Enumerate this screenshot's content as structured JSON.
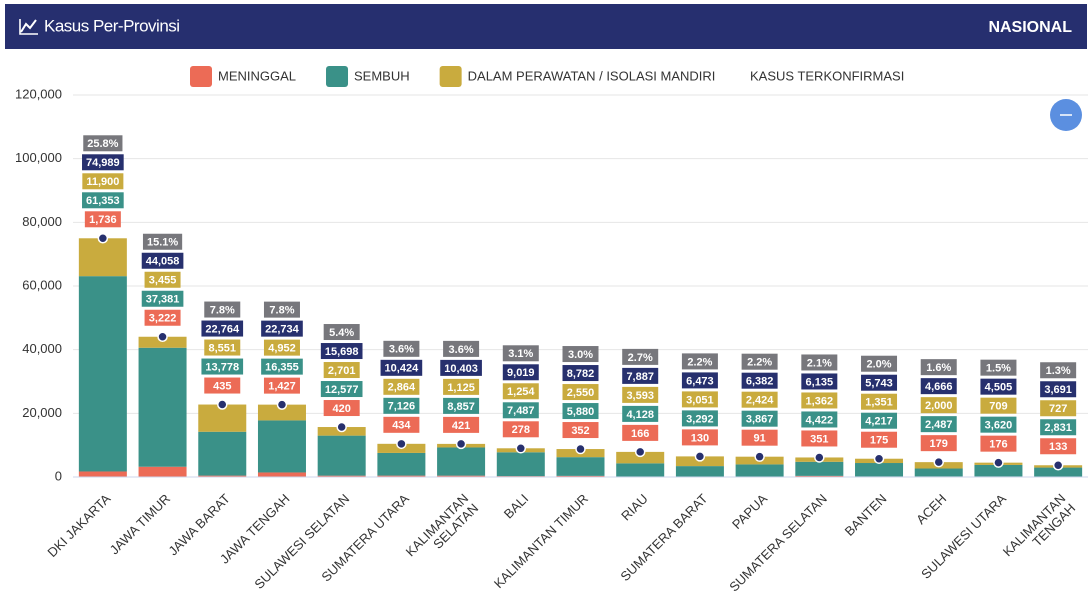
{
  "header": {
    "title": "Kasus Per-Provinsi",
    "scope": "NASIONAL"
  },
  "chart_data": {
    "type": "stacked-bar",
    "categories": [
      "DKI JAKARTA",
      "JAWA TIMUR",
      "JAWA BARAT",
      "JAWA TENGAH",
      "SULAWESI SELATAN",
      "SUMATERA UTARA",
      "KALIMANTAN\nSELATAN",
      "BALI",
      "KALIMANTAN TIMUR",
      "RIAU",
      "SUMATERA BARAT",
      "PAPUA",
      "SUMATERA SELATAN",
      "BANTEN",
      "ACEH",
      "SULAWESI UTARA",
      "KALIMANTAN\nTENGAH"
    ],
    "series": [
      {
        "name": "MENINGGAL",
        "color": "#ec6b56",
        "stack": true,
        "values": [
          1736,
          3222,
          435,
          1427,
          420,
          434,
          421,
          278,
          352,
          166,
          130,
          91,
          351,
          175,
          179,
          176,
          133
        ],
        "value_labels": [
          "1,736",
          "3,222",
          "435",
          "1,427",
          "420",
          "434",
          "421",
          "278",
          "352",
          "166",
          "130",
          "91",
          "351",
          "175",
          "179",
          "176",
          "133"
        ]
      },
      {
        "name": "SEMBUH",
        "color": "#3a9188",
        "stack": true,
        "values": [
          61353,
          37381,
          13778,
          16355,
          12577,
          7126,
          8857,
          7487,
          5880,
          4128,
          3292,
          3867,
          4422,
          4217,
          2487,
          3620,
          2831
        ],
        "value_labels": [
          "61,353",
          "37,381",
          "13,778",
          "16,355",
          "12,577",
          "7,126",
          "8,857",
          "7,487",
          "5,880",
          "4,128",
          "3,292",
          "3,867",
          "4,422",
          "4,217",
          "2,487",
          "3,620",
          "2,831"
        ]
      },
      {
        "name": "DALAM PERAWATAN / ISOLASI MANDIRI",
        "color": "#c9ab3e",
        "stack": true,
        "values": [
          11900,
          3455,
          8551,
          4952,
          2701,
          2864,
          1125,
          1254,
          2550,
          3593,
          3051,
          2424,
          1362,
          1351,
          2000,
          709,
          727
        ],
        "value_labels": [
          "11,900",
          "3,455",
          "8,551",
          "4,952",
          "2,701",
          "2,864",
          "1,125",
          "1,254",
          "2,550",
          "3,593",
          "3,051",
          "2,424",
          "1,362",
          "1,351",
          "2,000",
          "709",
          "727"
        ]
      },
      {
        "name": "KASUS TERKONFIRMASI",
        "color": "#27306e",
        "marker": "dot",
        "values": [
          74989,
          44058,
          22764,
          22734,
          15698,
          10424,
          10403,
          9019,
          8782,
          7887,
          6473,
          6382,
          6135,
          5743,
          4666,
          4505,
          3691
        ],
        "value_labels": [
          "74,989",
          "44,058",
          "22,764",
          "22,734",
          "15,698",
          "10,424",
          "10,403",
          "9,019",
          "8,782",
          "7,887",
          "6,473",
          "6,382",
          "6,135",
          "5,743",
          "4,666",
          "4,505",
          "3,691"
        ]
      }
    ],
    "shares": {
      "color": "#77777c",
      "values": [
        25.8,
        15.1,
        7.8,
        7.8,
        5.4,
        3.6,
        3.6,
        3.1,
        3.0,
        2.7,
        2.2,
        2.2,
        2.1,
        2.0,
        1.6,
        1.5,
        1.3
      ],
      "value_labels": [
        "25.8%",
        "15.1%",
        "7.8%",
        "7.8%",
        "5.4%",
        "3.6%",
        "3.6%",
        "3.1%",
        "3.0%",
        "2.7%",
        "2.2%",
        "2.2%",
        "2.1%",
        "2.0%",
        "1.6%",
        "1.5%",
        "1.3%"
      ]
    },
    "ylim": [
      0,
      120000
    ],
    "yticks": [
      0,
      {
        "value": 20000,
        "label": "20,000"
      },
      {
        "value": 40000,
        "label": "40,000"
      },
      {
        "value": 60000,
        "label": "60,000"
      },
      {
        "value": 80000,
        "label": "80,000"
      },
      {
        "value": 100000,
        "label": "100,000"
      },
      {
        "value": 120000,
        "label": "120,000"
      }
    ],
    "grid": true
  }
}
